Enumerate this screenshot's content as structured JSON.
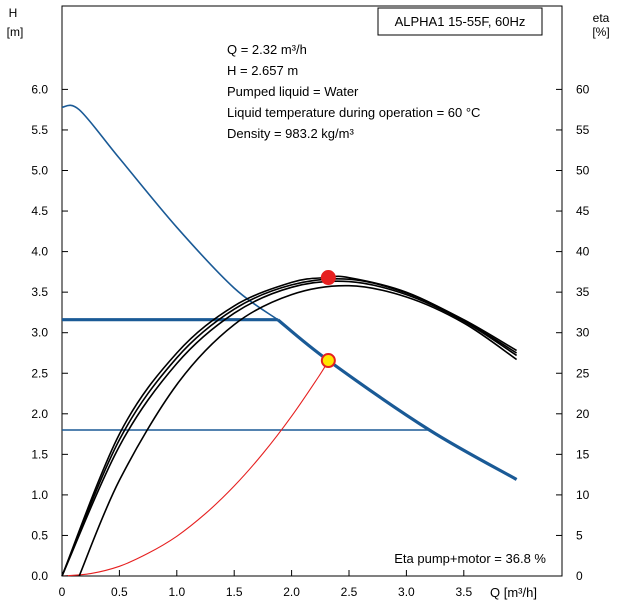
{
  "chart_data": {
    "type": "line",
    "title": "ALPHA1 15-55F, 60Hz",
    "y_left_label_top": "H",
    "y_left_label_unit": "[m]",
    "y_right_label_top": "eta",
    "y_right_label_unit": "[%]",
    "x_label": "Q [m³/h]",
    "xlim": [
      0,
      4.5
    ],
    "ylim_left": [
      0,
      7
    ],
    "ylim_right": [
      0,
      70
    ],
    "grid": false,
    "x_ticks": [
      "0",
      "0.5",
      "1.0",
      "1.5",
      "2.0",
      "2.5",
      "3.0",
      "3.5"
    ],
    "y_left_ticks": [
      "0.0",
      "0.5",
      "1.0",
      "1.5",
      "2.0",
      "2.5",
      "3.0",
      "3.5",
      "4.0",
      "4.5",
      "5.0",
      "5.5",
      "6.0"
    ],
    "y_right_ticks": [
      "0",
      "5",
      "10",
      "15",
      "20",
      "25",
      "30",
      "35",
      "40",
      "45",
      "50",
      "55",
      "60"
    ],
    "info_lines": [
      "Q = 2.32 m³/h",
      "H = 2.657 m",
      "Pumped liquid = Water",
      "Liquid temperature during operation = 60 °C",
      "Density = 983.2 kg/m³"
    ],
    "eta_annotation": "Eta pump+motor = 36.8 %",
    "series": [
      {
        "type": "head",
        "color": "#1a5a96",
        "width": 1.6,
        "x": [
          0,
          0.15,
          0.5,
          1.0,
          1.5,
          1.88
        ],
        "y": [
          5.78,
          5.75,
          5.15,
          4.3,
          3.55,
          3.16
        ]
      },
      {
        "type": "head",
        "color": "#1a5a96",
        "width": 3.2,
        "x": [
          0,
          1.88
        ],
        "y": [
          3.16,
          3.16
        ]
      },
      {
        "type": "head",
        "color": "#1a5a96",
        "width": 3.2,
        "x": [
          1.88,
          2.32,
          3.2,
          3.96
        ],
        "y": [
          3.16,
          2.657,
          1.8,
          1.19
        ]
      },
      {
        "type": "head",
        "color": "#1a5a96",
        "width": 1.6,
        "x": [
          0,
          3.2
        ],
        "y": [
          1.8,
          1.8
        ]
      },
      {
        "type": "system",
        "color": "#e62020",
        "width": 1.1,
        "x": [
          0,
          0.25,
          0.5,
          0.75,
          1.0,
          1.25,
          1.5,
          1.75,
          2.0,
          2.25,
          2.32
        ],
        "y": [
          0,
          0.03,
          0.12,
          0.28,
          0.49,
          0.77,
          1.11,
          1.51,
          1.97,
          2.49,
          2.657
        ]
      },
      {
        "type": "eta",
        "color": "#000000",
        "width": 1.6,
        "x": [
          0,
          0.5,
          1.0,
          1.5,
          2.0,
          2.3,
          2.5,
          3.0,
          3.5,
          3.96
        ],
        "y": [
          0,
          17.5,
          27.5,
          33.3,
          36.2,
          36.8,
          36.8,
          35.0,
          31.5,
          27.5
        ]
      },
      {
        "type": "eta",
        "color": "#000000",
        "width": 1.6,
        "x": [
          0,
          0.5,
          1.0,
          1.5,
          2.0,
          2.5,
          3.0,
          3.5,
          3.96
        ],
        "y": [
          0,
          16.8,
          26.9,
          32.9,
          35.9,
          36.6,
          34.9,
          31.6,
          27.8
        ]
      },
      {
        "type": "eta",
        "color": "#000000",
        "width": 1.6,
        "x": [
          0,
          0.5,
          1.0,
          1.5,
          2.0,
          2.5,
          3.0,
          3.5,
          3.96
        ],
        "y": [
          0,
          16.0,
          26.2,
          32.4,
          35.6,
          36.3,
          34.7,
          31.4,
          27.2
        ]
      },
      {
        "type": "eta",
        "color": "#000000",
        "width": 1.6,
        "x": [
          0.15,
          0.5,
          1.0,
          1.5,
          2.0,
          2.5,
          3.0,
          3.5,
          3.96
        ],
        "y": [
          0,
          11.8,
          23.6,
          31.0,
          34.7,
          35.8,
          34.4,
          31.2,
          26.7
        ]
      }
    ],
    "duty_points": [
      {
        "x": 2.32,
        "y": 2.657,
        "axis": "left",
        "fill": "#ffe600",
        "stroke": "#e62020"
      },
      {
        "x": 2.32,
        "y": 36.8,
        "axis": "right",
        "fill": "#e62020",
        "stroke": "#e62020"
      }
    ]
  }
}
